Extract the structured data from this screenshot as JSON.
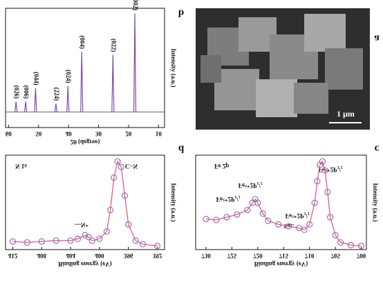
{
  "sem_image": {
    "panel": "a",
    "scale_bar": "1 μm"
  },
  "chart_data": [
    {
      "type": "stick",
      "panel": "b",
      "xlabel": "2θ (degree)",
      "ylabel": "Intensity (a.u.)",
      "xlim": [
        61,
        8
      ],
      "xticks": [
        60,
        50,
        40,
        30,
        20,
        10
      ],
      "ylim": [
        -15,
        100
      ],
      "color": "#7a4fa0",
      "x": [
        17.9,
        25.2,
        35.6,
        40.2,
        44.2,
        51,
        54.3,
        57.5
      ],
      "values": [
        95,
        55,
        58,
        25,
        8,
        23,
        10,
        10
      ],
      "peak_labels": [
        "(002)",
        "(022)",
        "(004)",
        "(024)",
        "(224)",
        "(044)",
        "(006)",
        "(026)"
      ]
    },
    {
      "type": "xps",
      "panel": "c",
      "xlabel": "Binding energy (eV)",
      "ylabel": "Intensity (a.u.)",
      "xlim": [
        732,
        699
      ],
      "xticks": [
        730,
        725,
        720,
        715,
        710,
        705,
        700
      ],
      "ylim": [
        0,
        105
      ],
      "color": "#9b6fb5",
      "fit_color": "#e05a8a",
      "annotations": [
        "Fe 2p",
        "Fe²⁺2P₃/₂",
        "Fe²⁺2P₁/₂",
        "Fe³⁺2P₁/₂",
        "Fe³⁺2P₃/₂",
        "Sat."
      ],
      "x": [
        730,
        728,
        726,
        724,
        722,
        721,
        720.5,
        720,
        719,
        718,
        716,
        714,
        712,
        711,
        710,
        709,
        708.5,
        708,
        707.5,
        707,
        706.5,
        706,
        705,
        704,
        702,
        700
      ],
      "values": [
        34,
        33,
        36,
        39,
        44,
        52,
        56,
        52,
        40,
        32,
        28,
        26,
        24,
        22,
        28,
        52,
        76,
        94,
        98,
        88,
        64,
        36,
        16,
        8,
        5,
        4
      ]
    },
    {
      "type": "xps",
      "panel": "d",
      "xlabel": "Binding energy (eV)",
      "ylabel": "Intensity (a.u.)",
      "xlim": [
        413,
        391
      ],
      "xticks": [
        412,
        408,
        404,
        400,
        396,
        392
      ],
      "ylim": [
        0,
        105
      ],
      "color": "#9b6fb5",
      "fit_color": "#e05a8a",
      "annotations": [
        "N 1s",
        "C−N",
        "—N⁺"
      ],
      "x": [
        412,
        410,
        408,
        406,
        404,
        403,
        402,
        401.5,
        401,
        400,
        399,
        398.5,
        398,
        397.5,
        397,
        396.5,
        396,
        395,
        394,
        392
      ],
      "values": [
        9,
        8,
        9,
        10,
        10,
        12,
        16,
        14,
        10,
        12,
        20,
        44,
        80,
        98,
        92,
        60,
        28,
        10,
        6,
        4
      ]
    }
  ]
}
